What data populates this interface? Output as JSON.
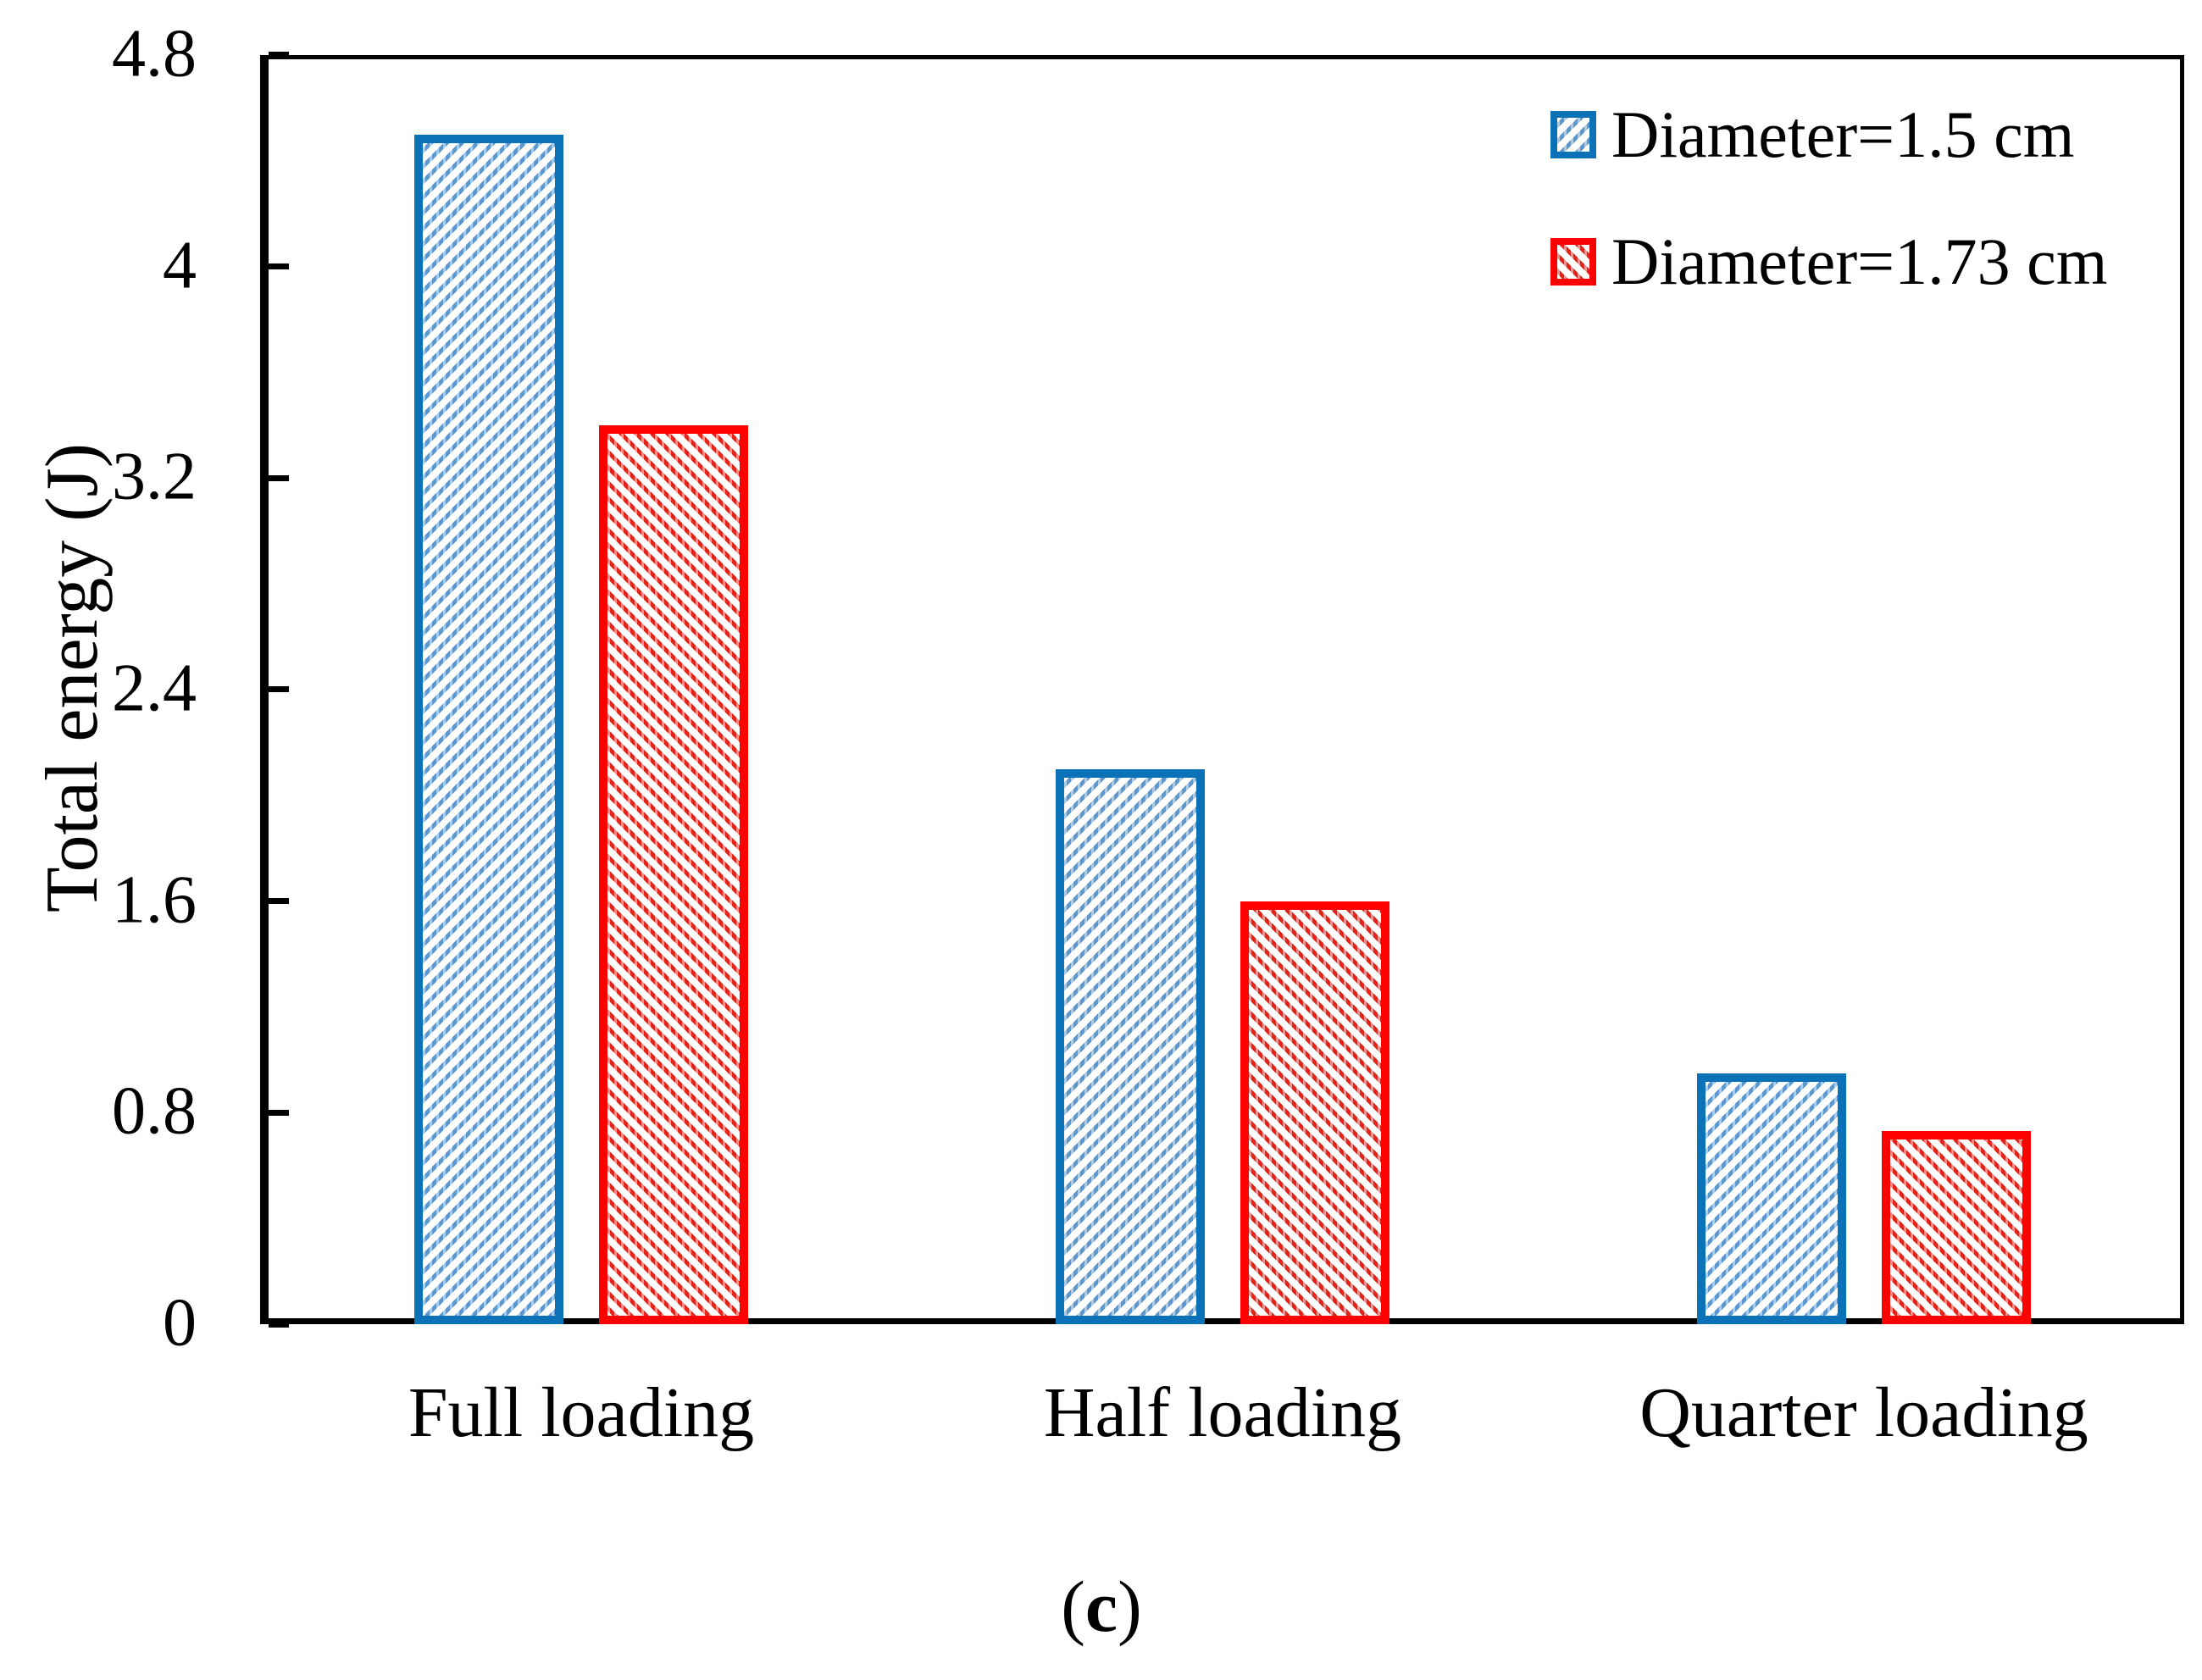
{
  "figure": {
    "caption": {
      "open": "(",
      "letter": "c",
      "close": ")"
    }
  },
  "chart_data": {
    "type": "bar",
    "title": "",
    "categories": [
      "Full loading",
      "Half loading",
      "Quarter loading"
    ],
    "series": [
      {
        "name": "Diameter=1.5 cm",
        "color": "#0B72B8",
        "hatch_color": "#5C97CE",
        "hatch_direction": "/",
        "values": [
          4.5,
          2.1,
          0.95
        ]
      },
      {
        "name": "Diameter=1.73 cm",
        "color": "#FE0000",
        "hatch_color": "#E2241B",
        "hatch_direction": "\\",
        "values": [
          3.4,
          1.6,
          0.73
        ]
      }
    ],
    "xlabel": "",
    "ylabel": "Total energy (J)",
    "ylim": [
      0,
      4.8
    ],
    "ytick_interval": 0.8,
    "ytick_labels": [
      "0",
      "0.8",
      "1.6",
      "2.4",
      "3.2",
      "4",
      "4.8"
    ],
    "grid": false,
    "legend_position": "top-right",
    "axis_color": "#000000",
    "background_color": "#FFFFFF"
  }
}
